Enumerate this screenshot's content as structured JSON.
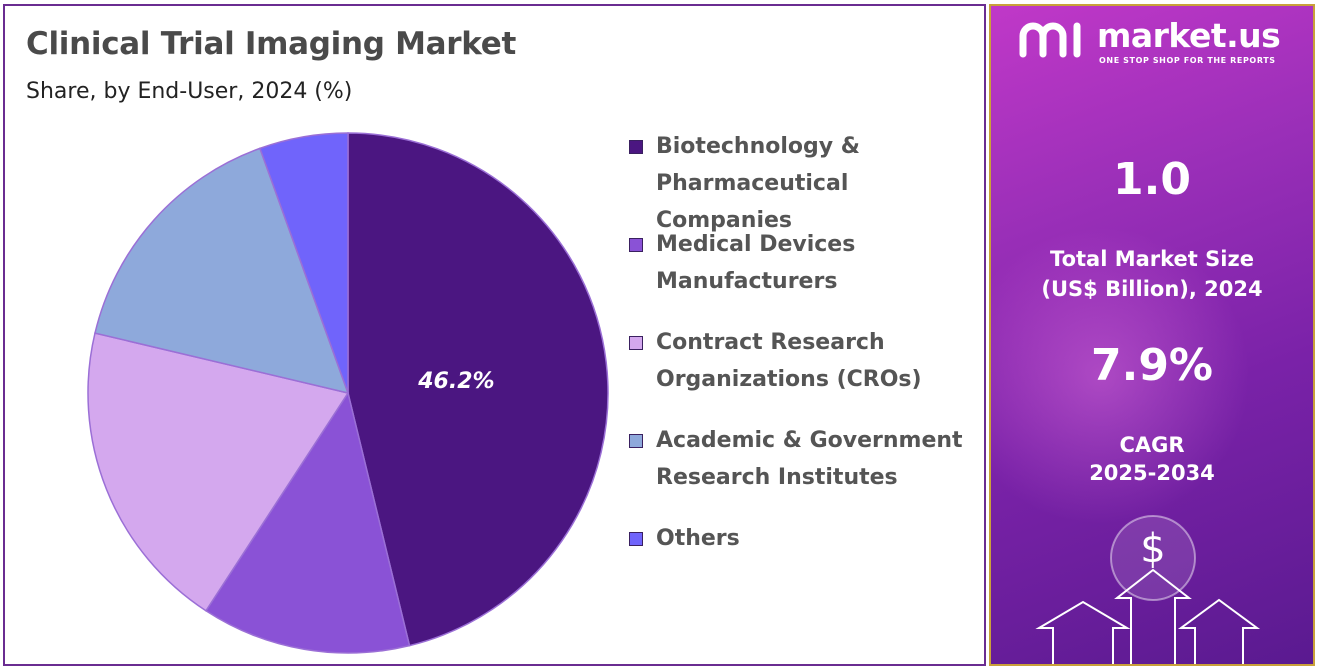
{
  "chart_data": {
    "type": "pie",
    "title": "Clinical Trial Imaging Market",
    "subtitle": "Share, by End-User, 2024 (%)",
    "categories": [
      "Biotechnology & Pharmaceutical Companies",
      "Medical Devices Manufacturers",
      "Contract Research Organizations (CROs)",
      "Academic & Government Research Institutes",
      "Others"
    ],
    "values": [
      46.2,
      13.0,
      19.5,
      15.8,
      5.5
    ],
    "colors": [
      "#4b1681",
      "#8a52d6",
      "#d4a8ee",
      "#8ea9db",
      "#7064fb"
    ],
    "data_labels": [
      "46.2%",
      "",
      "",
      "",
      ""
    ],
    "legend_position": "right"
  },
  "legend": {
    "items": [
      {
        "lines": [
          "Biotechnology &",
          "Pharmaceutical",
          "Companies"
        ],
        "color": "#4b1681"
      },
      {
        "lines": [
          "Medical Devices",
          "Manufacturers"
        ],
        "color": "#8a52d6"
      },
      {
        "lines": [
          "Contract Research",
          "Organizations (CROs)"
        ],
        "color": "#d4a8ee"
      },
      {
        "lines": [
          "Academic & Government",
          "Research Institutes"
        ],
        "color": "#8ea9db"
      },
      {
        "lines": [
          "Others"
        ],
        "color": "#7064fb"
      }
    ]
  },
  "side_panel": {
    "brand_name": "market.us",
    "brand_tagline": "ONE STOP SHOP FOR THE REPORTS",
    "market_size_value": "1.0",
    "market_size_label_line1": "Total Market Size",
    "market_size_label_line2": "(US$ Billion), 2024",
    "cagr_value": "7.9%",
    "cagr_label_line1": "CAGR",
    "cagr_label_line2": "2025-2034",
    "dollar_symbol": "$"
  }
}
